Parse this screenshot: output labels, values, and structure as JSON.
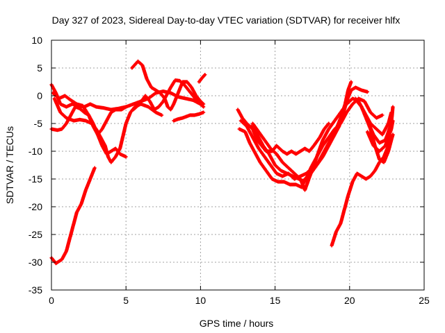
{
  "chart_data": {
    "type": "scatter",
    "title": "Day 327 of 2023, Sidereal Day-to-day VTEC variation (SDTVAR) for receiver hlfx",
    "xlabel": "GPS time / hours",
    "ylabel": "SDTVAR / TECUs",
    "xlim": [
      0,
      25
    ],
    "ylim": [
      -35,
      10
    ],
    "xticks": [
      0,
      5,
      10,
      15,
      20,
      25
    ],
    "yticks": [
      -35,
      -30,
      -25,
      -20,
      -15,
      -10,
      -5,
      0,
      5,
      10
    ],
    "xtick_labels": [
      "0",
      "5",
      "10",
      "15",
      "20",
      "25"
    ],
    "ytick_labels": [
      "-35",
      "-30",
      "-25",
      "-20",
      "-15",
      "-10",
      "-5",
      "0",
      "5",
      "10"
    ],
    "grid": true,
    "marker": "+",
    "color": "#ff0000",
    "series": [
      {
        "name": "track-1",
        "points": [
          [
            0,
            -29.2
          ],
          [
            0.3,
            -30.2
          ],
          [
            0.7,
            -29.5
          ],
          [
            1.0,
            -28
          ],
          [
            1.4,
            -24
          ],
          [
            1.7,
            -21
          ],
          [
            2.0,
            -19.5
          ],
          [
            2.3,
            -17
          ],
          [
            2.6,
            -15
          ],
          [
            2.9,
            -13
          ]
        ]
      },
      {
        "name": "track-2",
        "points": [
          [
            0,
            2
          ],
          [
            0.3,
            0.5
          ],
          [
            0.6,
            -1.5
          ],
          [
            1.0,
            -2
          ],
          [
            1.4,
            -1.5
          ],
          [
            1.8,
            -1.8
          ],
          [
            2.2,
            -2
          ],
          [
            2.6,
            -1.5
          ],
          [
            3.0,
            -2
          ],
          [
            3.5,
            -2.2
          ],
          [
            4.0,
            -2.5
          ],
          [
            4.5,
            -2.3
          ],
          [
            5.0,
            -2
          ],
          [
            5.5,
            -1.5
          ],
          [
            6.0,
            -1
          ],
          [
            6.5,
            -0.5
          ],
          [
            7.0,
            0.5
          ],
          [
            7.5,
            0.8
          ],
          [
            8.0,
            0.5
          ],
          [
            8.5,
            -0.2
          ],
          [
            9.0,
            -0.5
          ],
          [
            9.5,
            -0.8
          ],
          [
            10.0,
            -1.5
          ]
        ]
      },
      {
        "name": "track-3",
        "points": [
          [
            0.2,
            -0.5
          ],
          [
            0.6,
            -3
          ],
          [
            1.0,
            -4
          ],
          [
            1.5,
            -4.5
          ],
          [
            1.9,
            -4.3
          ],
          [
            2.3,
            -4.5
          ],
          [
            2.7,
            -5
          ],
          [
            3.0,
            -6
          ],
          [
            3.3,
            -7.5
          ],
          [
            3.6,
            -9
          ],
          [
            3.8,
            -11
          ],
          [
            4.0,
            -12
          ],
          [
            4.3,
            -11
          ],
          [
            4.6,
            -9.5
          ],
          [
            5.0,
            -5
          ],
          [
            5.3,
            -3
          ],
          [
            5.6,
            -2
          ],
          [
            6.0,
            -1.5
          ],
          [
            6.5,
            -2
          ],
          [
            7.0,
            -3
          ],
          [
            7.4,
            -3.5
          ]
        ]
      },
      {
        "name": "track-4",
        "points": [
          [
            0,
            -6
          ],
          [
            0.4,
            -6.2
          ],
          [
            0.7,
            -6
          ],
          [
            1.0,
            -5
          ],
          [
            1.3,
            -3.5
          ],
          [
            1.6,
            -2
          ],
          [
            1.9,
            -2.3
          ],
          [
            2.2,
            -3
          ],
          [
            2.5,
            -3.5
          ],
          [
            2.8,
            -5
          ],
          [
            3.1,
            -7
          ],
          [
            3.4,
            -9
          ],
          [
            3.7,
            -10.5
          ],
          [
            4.0,
            -10
          ],
          [
            4.3,
            -9.5
          ],
          [
            4.6,
            -10.5
          ],
          [
            5.0,
            -11
          ]
        ]
      },
      {
        "name": "track-5",
        "points": [
          [
            0.1,
            0.5
          ],
          [
            0.5,
            -0.5
          ],
          [
            0.9,
            0
          ],
          [
            1.3,
            -0.8
          ],
          [
            1.7,
            -1.5
          ],
          [
            2.1,
            -1.8
          ],
          [
            2.5,
            -3.5
          ],
          [
            2.8,
            -5.5
          ],
          [
            3.1,
            -7
          ],
          [
            3.4,
            -6
          ],
          [
            3.7,
            -4.5
          ],
          [
            4.0,
            -3
          ],
          [
            4.3,
            -2.5
          ],
          [
            4.7,
            -2.5
          ],
          [
            5.0,
            -2
          ]
        ]
      },
      {
        "name": "track-6",
        "points": [
          [
            5.4,
            5
          ],
          [
            5.8,
            6.2
          ],
          [
            6.1,
            5.5
          ],
          [
            6.4,
            3
          ],
          [
            6.7,
            1.5
          ],
          [
            7.0,
            1
          ],
          [
            7.3,
            0.5
          ],
          [
            7.6,
            -0.5
          ],
          [
            7.8,
            -2
          ],
          [
            8.0,
            -2.5
          ],
          [
            8.2,
            -1.5
          ],
          [
            8.5,
            0.5
          ],
          [
            8.8,
            2.5
          ],
          [
            9.1,
            2.5
          ],
          [
            9.4,
            1.5
          ],
          [
            9.7,
            0
          ],
          [
            10.0,
            -1
          ],
          [
            10.2,
            -1.5
          ]
        ]
      },
      {
        "name": "track-7",
        "points": [
          [
            5.5,
            -2.5
          ],
          [
            5.9,
            -1.5
          ],
          [
            6.3,
            0
          ],
          [
            6.6,
            -1
          ],
          [
            6.9,
            -2.5
          ],
          [
            7.2,
            -2
          ],
          [
            7.5,
            -1
          ],
          [
            7.8,
            0.5
          ],
          [
            8.0,
            1.5
          ],
          [
            8.3,
            2.8
          ],
          [
            8.6,
            2.7
          ],
          [
            8.9,
            2
          ],
          [
            9.2,
            1
          ],
          [
            9.5,
            0
          ],
          [
            9.8,
            -1
          ],
          [
            10.2,
            -2
          ]
        ]
      },
      {
        "name": "track-8",
        "points": [
          [
            8.2,
            -4.5
          ],
          [
            8.5,
            -4.2
          ],
          [
            8.8,
            -4
          ],
          [
            9.0,
            -3.8
          ],
          [
            9.3,
            -3.5
          ],
          [
            9.6,
            -3.5
          ],
          [
            9.9,
            -3.3
          ],
          [
            10.2,
            -3
          ]
        ]
      },
      {
        "name": "track-9",
        "points": [
          [
            9.9,
            2.5
          ],
          [
            10.1,
            3.2
          ],
          [
            10.3,
            3.8
          ]
        ]
      },
      {
        "name": "track-10",
        "points": [
          [
            12.5,
            -2.5
          ],
          [
            12.8,
            -4
          ],
          [
            13.1,
            -5
          ],
          [
            13.5,
            -6
          ],
          [
            13.8,
            -8
          ],
          [
            14.1,
            -9
          ],
          [
            14.4,
            -10
          ],
          [
            14.8,
            -10
          ],
          [
            15.1,
            -9
          ],
          [
            15.5,
            -10
          ],
          [
            15.8,
            -10.5
          ],
          [
            16.1,
            -10
          ],
          [
            16.4,
            -10.5
          ],
          [
            16.7,
            -10
          ],
          [
            17.0,
            -9.5
          ],
          [
            17.3,
            -10
          ],
          [
            17.6,
            -9
          ],
          [
            18.0,
            -7.5
          ],
          [
            18.3,
            -6
          ],
          [
            18.6,
            -5
          ]
        ]
      },
      {
        "name": "track-11",
        "points": [
          [
            12.6,
            -6
          ],
          [
            13.0,
            -6.5
          ],
          [
            13.3,
            -8.5
          ],
          [
            13.7,
            -10.5
          ],
          [
            14.0,
            -12
          ],
          [
            14.4,
            -13.5
          ],
          [
            14.8,
            -15
          ],
          [
            15.2,
            -15.5
          ],
          [
            15.6,
            -15.5
          ],
          [
            16.0,
            -16
          ],
          [
            16.4,
            -16
          ],
          [
            16.8,
            -16.5
          ],
          [
            17.0,
            -15
          ],
          [
            17.4,
            -14
          ],
          [
            17.8,
            -12.5
          ],
          [
            18.2,
            -11
          ],
          [
            18.6,
            -9
          ],
          [
            19.0,
            -7
          ],
          [
            19.3,
            -5.5
          ],
          [
            19.6,
            -3
          ],
          [
            19.8,
            -1
          ],
          [
            20.1,
            1
          ],
          [
            20.4,
            1.5
          ],
          [
            20.8,
            1
          ],
          [
            21.2,
            0.7
          ]
        ]
      },
      {
        "name": "track-12",
        "points": [
          [
            12.7,
            -4.5
          ],
          [
            13.1,
            -5.5
          ],
          [
            13.5,
            -7.5
          ],
          [
            13.9,
            -9.5
          ],
          [
            14.3,
            -11
          ],
          [
            14.7,
            -12.5
          ],
          [
            15.1,
            -14
          ],
          [
            15.5,
            -14.5
          ],
          [
            15.9,
            -14
          ],
          [
            16.3,
            -15
          ],
          [
            16.7,
            -14.5
          ],
          [
            17.1,
            -14
          ],
          [
            17.5,
            -13
          ],
          [
            17.9,
            -12
          ],
          [
            18.3,
            -10
          ],
          [
            18.7,
            -8
          ],
          [
            19.1,
            -6
          ],
          [
            19.4,
            -4
          ],
          [
            19.7,
            -1.5
          ],
          [
            19.9,
            1
          ],
          [
            20.1,
            2.5
          ]
        ]
      },
      {
        "name": "track-13",
        "points": [
          [
            13.4,
            -5.5
          ],
          [
            13.8,
            -7
          ],
          [
            14.2,
            -9
          ],
          [
            14.6,
            -10.5
          ],
          [
            15.0,
            -12.5
          ],
          [
            15.4,
            -13.5
          ],
          [
            15.8,
            -14
          ],
          [
            16.2,
            -14.5
          ],
          [
            16.6,
            -15
          ],
          [
            17.0,
            -15.5
          ],
          [
            17.4,
            -13
          ],
          [
            17.8,
            -11
          ],
          [
            18.2,
            -9
          ],
          [
            18.6,
            -7.5
          ],
          [
            19.0,
            -6
          ],
          [
            19.4,
            -5
          ],
          [
            19.8,
            -3
          ],
          [
            20.2,
            -1.5
          ],
          [
            20.6,
            -0.5
          ],
          [
            21.0,
            -1
          ],
          [
            21.4,
            -3
          ],
          [
            21.8,
            -4
          ],
          [
            22.2,
            -3.5
          ]
        ]
      },
      {
        "name": "track-14",
        "points": [
          [
            13.5,
            -5
          ],
          [
            13.9,
            -6.5
          ],
          [
            14.3,
            -8
          ],
          [
            14.7,
            -9.5
          ],
          [
            15.1,
            -10.5
          ],
          [
            15.5,
            -12
          ],
          [
            15.9,
            -13
          ],
          [
            16.3,
            -14
          ],
          [
            16.7,
            -15
          ],
          [
            17.0,
            -17
          ],
          [
            17.4,
            -14
          ],
          [
            17.8,
            -11
          ],
          [
            18.2,
            -8
          ],
          [
            18.6,
            -6
          ],
          [
            19.0,
            -4.5
          ],
          [
            19.4,
            -3
          ],
          [
            19.8,
            -1.5
          ],
          [
            20.2,
            -0.5
          ],
          [
            20.6,
            -1
          ],
          [
            21.0,
            -3
          ],
          [
            21.4,
            -5
          ],
          [
            21.8,
            -6
          ],
          [
            22.2,
            -7
          ],
          [
            22.6,
            -5
          ],
          [
            22.8,
            -3
          ]
        ]
      },
      {
        "name": "track-15",
        "points": [
          [
            18.8,
            -27
          ],
          [
            19.1,
            -24.5
          ],
          [
            19.4,
            -23
          ],
          [
            19.7,
            -20
          ],
          [
            19.9,
            -18
          ],
          [
            20.2,
            -15.5
          ],
          [
            20.5,
            -14
          ],
          [
            20.8,
            -14.5
          ],
          [
            21.1,
            -15
          ],
          [
            21.4,
            -14.5
          ],
          [
            21.7,
            -13.5
          ],
          [
            22.0,
            -12
          ],
          [
            22.3,
            -11
          ],
          [
            22.6,
            -9
          ],
          [
            22.9,
            -7
          ]
        ]
      },
      {
        "name": "track-16",
        "points": [
          [
            20.5,
            -1
          ],
          [
            20.8,
            -2
          ],
          [
            21.1,
            -4
          ],
          [
            21.4,
            -6
          ],
          [
            21.7,
            -9
          ],
          [
            22.0,
            -11.5
          ],
          [
            22.3,
            -12
          ],
          [
            22.6,
            -10
          ],
          [
            22.9,
            -7
          ]
        ]
      },
      {
        "name": "track-17",
        "points": [
          [
            20.4,
            -0.5
          ],
          [
            20.8,
            -2
          ],
          [
            21.2,
            -4.5
          ],
          [
            21.6,
            -7
          ],
          [
            22.0,
            -8.5
          ],
          [
            22.4,
            -8
          ],
          [
            22.8,
            -5
          ],
          [
            22.9,
            -2
          ]
        ]
      },
      {
        "name": "track-18",
        "points": [
          [
            21.2,
            -6.5
          ],
          [
            21.6,
            -9
          ],
          [
            22.0,
            -10
          ],
          [
            22.4,
            -9
          ],
          [
            22.8,
            -6
          ],
          [
            22.9,
            -4.5
          ]
        ]
      }
    ]
  }
}
